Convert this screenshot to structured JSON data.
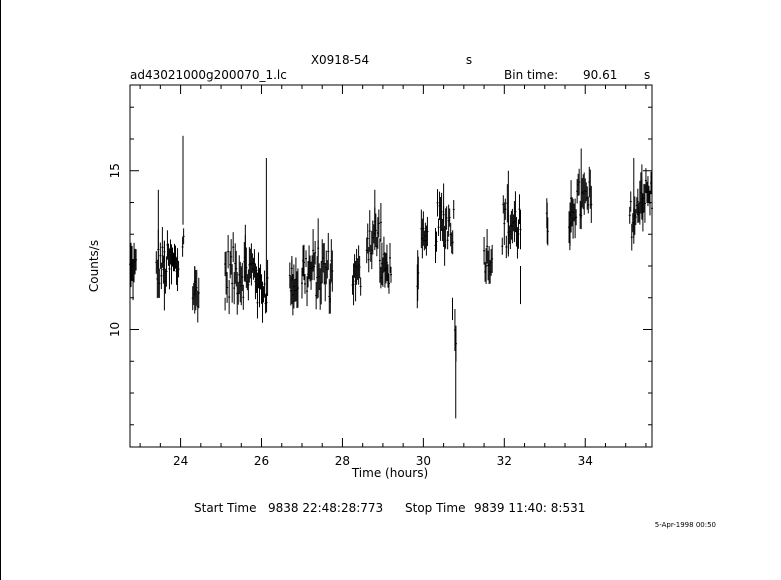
{
  "chart_data": {
    "type": "line",
    "title": "X0918-54",
    "title_suffix": "s",
    "file_name": "ad43021000g200070_1.lc",
    "bin_time_label": "Bin time:",
    "bin_time_value": "90.61",
    "bin_time_unit": "s",
    "xlabel": "Time (hours)",
    "ylabel": "Counts/s",
    "xlim": [
      22.75,
      35.65
    ],
    "ylim": [
      6.3,
      17.7
    ],
    "x_ticks": [
      "24",
      "26",
      "28",
      "30",
      "32",
      "34"
    ],
    "y_ticks": [
      "10",
      "15"
    ],
    "x_tick_values": [
      24,
      26,
      28,
      30,
      32,
      34
    ],
    "y_tick_values": [
      10,
      15
    ],
    "grid": false,
    "start_time_label": "Start Time",
    "start_time_value": "9838 22:48:28:773",
    "stop_time_label": "Stop Time",
    "stop_time_value": "9839 11:40: 8:531",
    "timestamp": "5-Apr-1998 00:50",
    "segments": [
      {
        "x0": 22.75,
        "x1": 22.9,
        "base": 11.9,
        "amp": 0.5,
        "spikes": []
      },
      {
        "x0": 23.4,
        "x1": 23.95,
        "base": 12.0,
        "amp": 0.7,
        "spikes": [
          [
            23.45,
            14.4,
            11.0
          ],
          [
            23.6,
            12.8,
            10.6
          ]
        ]
      },
      {
        "x0": 24.05,
        "x1": 24.08,
        "base": 12.8,
        "amp": 0.4,
        "spikes": [
          [
            24.06,
            16.1,
            13.3
          ]
        ]
      },
      {
        "x0": 24.3,
        "x1": 24.45,
        "base": 11.2,
        "amp": 0.5,
        "spikes": [
          [
            24.35,
            12.0,
            10.5
          ]
        ]
      },
      {
        "x0": 25.1,
        "x1": 25.9,
        "base": 11.8,
        "amp": 0.8,
        "spikes": [
          [
            25.1,
            11.0,
            10.6
          ],
          [
            25.6,
            13.3,
            11.5
          ]
        ]
      },
      {
        "x0": 25.9,
        "x1": 26.15,
        "base": 11.3,
        "amp": 0.6,
        "spikes": [
          [
            26.12,
            15.4,
            10.8
          ]
        ]
      },
      {
        "x0": 26.7,
        "x1": 26.9,
        "base": 11.5,
        "amp": 0.5,
        "spikes": [
          [
            26.75,
            12.2,
            10.8
          ]
        ]
      },
      {
        "x0": 27.0,
        "x1": 27.75,
        "base": 11.8,
        "amp": 0.8,
        "spikes": [
          [
            27.4,
            13.5,
            11.0
          ],
          [
            27.7,
            11.0,
            10.5
          ]
        ]
      },
      {
        "x0": 28.25,
        "x1": 28.45,
        "base": 11.7,
        "amp": 0.5,
        "spikes": []
      },
      {
        "x0": 28.6,
        "x1": 28.95,
        "base": 12.9,
        "amp": 0.8,
        "spikes": [
          [
            28.8,
            14.4,
            12.5
          ]
        ]
      },
      {
        "x0": 28.95,
        "x1": 29.2,
        "base": 11.9,
        "amp": 0.5,
        "spikes": []
      },
      {
        "x0": 29.85,
        "x1": 29.88,
        "base": 11.6,
        "amp": 0.3,
        "spikes": [
          [
            29.86,
            12.5,
            10.9
          ]
        ]
      },
      {
        "x0": 29.95,
        "x1": 30.1,
        "base": 12.6,
        "amp": 0.6,
        "spikes": []
      },
      {
        "x0": 30.3,
        "x1": 30.75,
        "base": 13.3,
        "amp": 0.7,
        "spikes": [
          [
            30.5,
            14.6,
            12.6
          ],
          [
            30.72,
            11.0,
            10.3
          ]
        ]
      },
      {
        "x0": 30.78,
        "x1": 30.82,
        "base": 10.0,
        "amp": 0.5,
        "spikes": [
          [
            30.8,
            10.0,
            7.2
          ]
        ]
      },
      {
        "x0": 31.5,
        "x1": 31.7,
        "base": 12.3,
        "amp": 0.5,
        "spikes": []
      },
      {
        "x0": 31.95,
        "x1": 32.4,
        "base": 13.3,
        "amp": 0.8,
        "spikes": [
          [
            32.1,
            15.0,
            12.3
          ],
          [
            32.4,
            12.0,
            10.8
          ]
        ]
      },
      {
        "x0": 33.05,
        "x1": 33.08,
        "base": 13.2,
        "amp": 0.5,
        "spikes": [
          [
            33.06,
            14.0,
            12.7
          ]
        ]
      },
      {
        "x0": 33.6,
        "x1": 33.65,
        "base": 12.9,
        "amp": 0.5,
        "spikes": [
          [
            33.62,
            13.3,
            12.5
          ]
        ]
      },
      {
        "x0": 33.65,
        "x1": 34.15,
        "base": 14.0,
        "amp": 0.7,
        "spikes": [
          [
            33.9,
            15.7,
            13.5
          ]
        ]
      },
      {
        "x0": 35.1,
        "x1": 35.3,
        "base": 13.5,
        "amp": 0.6,
        "spikes": [
          [
            35.2,
            15.4,
            12.7
          ]
        ]
      },
      {
        "x0": 35.3,
        "x1": 35.65,
        "base": 14.2,
        "amp": 0.6,
        "spikes": [
          [
            35.4,
            15.2,
            13.5
          ]
        ]
      }
    ]
  }
}
